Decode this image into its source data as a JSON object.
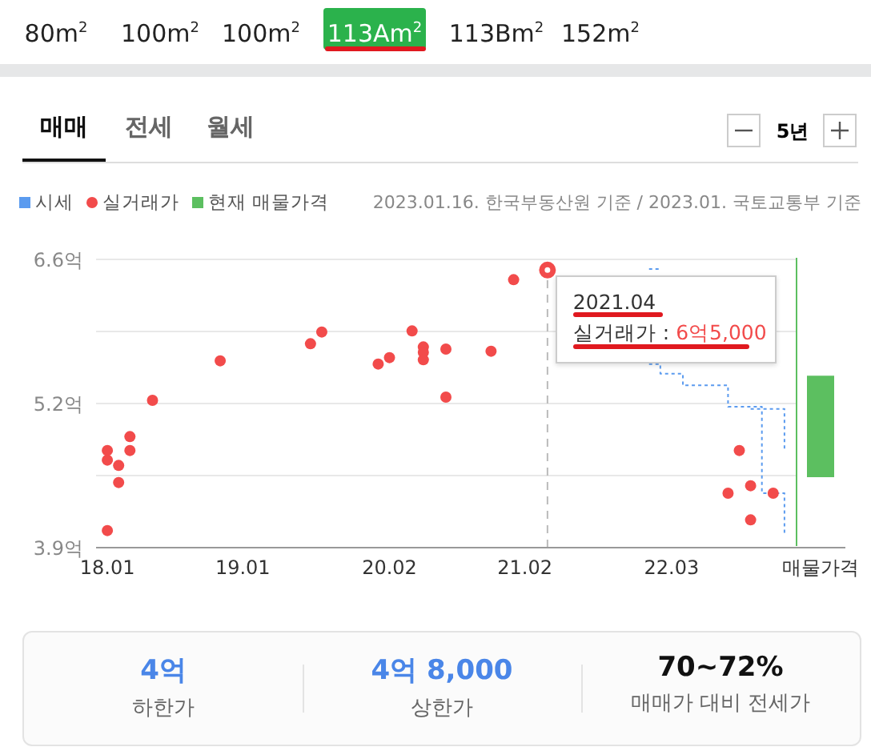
{
  "chart_data": [
    {
      "type": "scatter",
      "subtitle": "2023.01.16. 한국부동산원 기준 / 2023.01. 국토교통부 기준",
      "annotations": [
        "80m$^{2}$",
        "100m$^{2}$",
        "100m$^{2}$",
        "113Am$^{2}$",
        "113Bm$^{2}$",
        "152m$^{2}$",
        "매매",
        "전세",
        "월세",
        "5년",
        {
          "text": "2021.04",
          "x": "2021-04",
          "y": 6.5
        },
        {
          "text": "실거래가 : 6억5,000",
          "x": "2021-04",
          "y": 6.5
        }
      ],
      "xlim": [
        "2017-12",
        "2023-02"
      ],
      "xticks": [
        {
          "value": "2018-01",
          "label": "18.01"
        },
        {
          "value": "2019-01",
          "label": "19.01"
        },
        {
          "value": "2020-02",
          "label": "20.02"
        },
        {
          "value": "2021-02",
          "label": "21.02"
        },
        {
          "value": "2022-03",
          "label": "22.03"
        }
      ],
      "ylim": [
        3.9,
        6.6
      ],
      "yticks": [
        {
          "value": 3.9,
          "label": "3.9억"
        },
        {
          "value": 4.575,
          "label": null
        },
        {
          "value": 5.25,
          "label": "5.2억"
        },
        {
          "value": 5.925,
          "label": null
        },
        {
          "value": 6.6,
          "label": "6.6억"
        }
      ],
      "grid": "y",
      "legend": "top left",
      "ref_lines": [
        {
          "axis": "x",
          "value": "2021-04",
          "color": "#bbbbbb",
          "line_style": "dashed"
        }
      ],
      "series": [
        {
          "name": "시세",
          "type": "step",
          "color": "#5b9bef",
          "line_style": "dotted",
          "x": [
            "2022-01",
            "2022-02",
            "2022-03",
            "2022-04",
            "2022-05",
            "2022-06",
            "2022-07",
            "2022-08",
            "2022-09",
            "2022-10",
            "2022-11",
            "2022-12",
            "2023-01"
          ],
          "values": [
            5.62,
            5.53,
            5.53,
            5.42,
            5.42,
            5.42,
            5.42,
            5.22,
            5.22,
            5.22,
            4.41,
            4.41,
            4.02
          ]
        },
        {
          "type": "step",
          "color": "#5b9bef",
          "line_style": "dotted",
          "x": [
            "2022-01",
            "2022-02",
            "2022-03",
            "2022-04",
            "2022-05",
            "2022-06",
            "2022-07",
            "2022-08",
            "2022-09",
            "2022-10",
            "2022-11",
            "2022-12",
            "2023-01"
          ],
          "values": [
            6.51,
            6.51,
            null,
            null,
            null,
            null,
            null,
            null,
            null,
            5.2,
            5.2,
            5.2,
            4.82
          ]
        },
        {
          "name": "실거래가",
          "type": "scatter",
          "color": "#f24b4b",
          "marker": "circle",
          "x": [
            "2018-01",
            "2018-01",
            "2018-01",
            "2018-02",
            "2018-02",
            "2018-03",
            "2018-03",
            "2018-05",
            "2018-11",
            "2019-07",
            "2019-08",
            "2020-01",
            "2020-02",
            "2020-04",
            "2020-05",
            "2020-05",
            "2020-05",
            "2020-07",
            "2020-07",
            "2020-11",
            "2021-01",
            "2021-04",
            "2022-08",
            "2022-09",
            "2022-10",
            "2022-10",
            "2022-12"
          ],
          "values": [
            4.81,
            4.72,
            4.06,
            4.67,
            4.51,
            4.94,
            4.81,
            5.28,
            5.65,
            5.81,
            5.92,
            5.62,
            5.68,
            5.93,
            5.78,
            5.73,
            5.66,
            5.76,
            5.31,
            5.74,
            6.41,
            6.5,
            4.41,
            4.81,
            4.48,
            4.16,
            4.41
          ]
        }
      ]
    },
    {
      "type": "bar",
      "categories": [
        "매물가격"
      ],
      "ylim": [
        3.9,
        6.6
      ],
      "tick_labels": "x",
      "legend": "top left",
      "series": [
        {
          "name": "현재 매물가격",
          "color": "#5cbf60",
          "base": [
            4.56
          ],
          "values": [
            0.95
          ]
        }
      ]
    },
    {
      "type": "other",
      "annotations": [
        "4억",
        "하한가",
        "4억 8,000",
        "상한가",
        "70~72%",
        "매매가 대비 전세가"
      ]
    }
  ]
}
